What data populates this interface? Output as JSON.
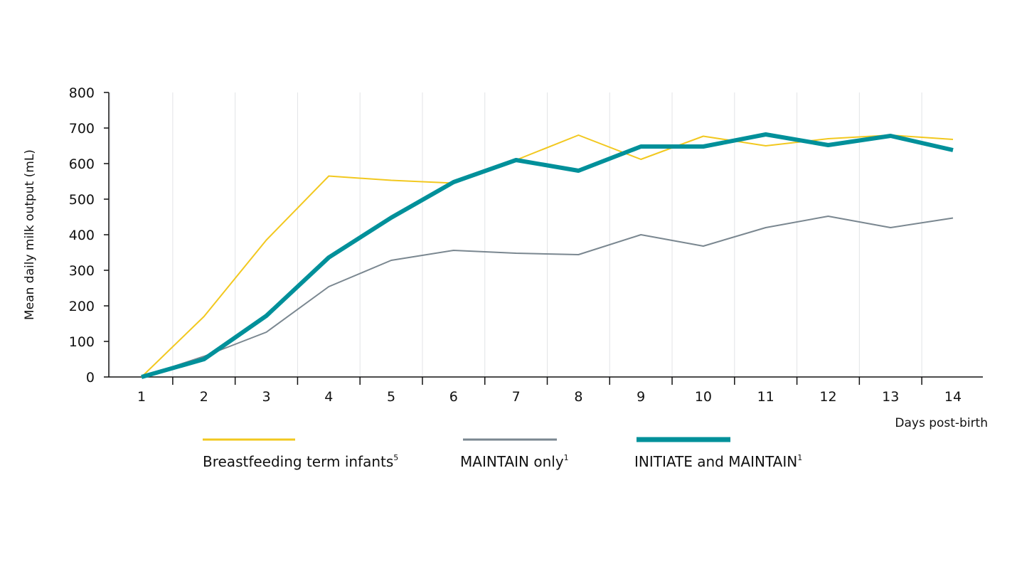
{
  "chart_data": {
    "type": "line",
    "title": "",
    "xlabel": "Days post-birth",
    "ylabel": "Mean daily milk output (mL)",
    "x": [
      1,
      2,
      3,
      4,
      5,
      6,
      7,
      8,
      9,
      10,
      11,
      12,
      13,
      14
    ],
    "ylim": [
      0,
      800
    ],
    "yticks": [
      0,
      100,
      200,
      300,
      400,
      500,
      600,
      700,
      800
    ],
    "grid": "vertical",
    "legend_position": "bottom",
    "series": [
      {
        "name": "Breastfeeding term infants",
        "superscript": "5",
        "color": "#F2C81F",
        "style": "thin",
        "values": [
          0,
          170,
          385,
          565,
          553,
          545,
          610,
          680,
          612,
          677,
          650,
          670,
          680,
          668
        ]
      },
      {
        "name": "MAINTAIN only",
        "superscript": "1",
        "color": "#7A8790",
        "style": "thin",
        "values": [
          0,
          58,
          126,
          254,
          328,
          356,
          348,
          344,
          400,
          368,
          420,
          452,
          420,
          447
        ]
      },
      {
        "name": "INITIATE and MAINTAIN",
        "superscript": "1",
        "color": "#00909A",
        "style": "thick",
        "values": [
          0,
          50,
          172,
          336,
          448,
          548,
          610,
          580,
          648,
          648,
          682,
          652,
          678,
          638
        ]
      }
    ]
  }
}
